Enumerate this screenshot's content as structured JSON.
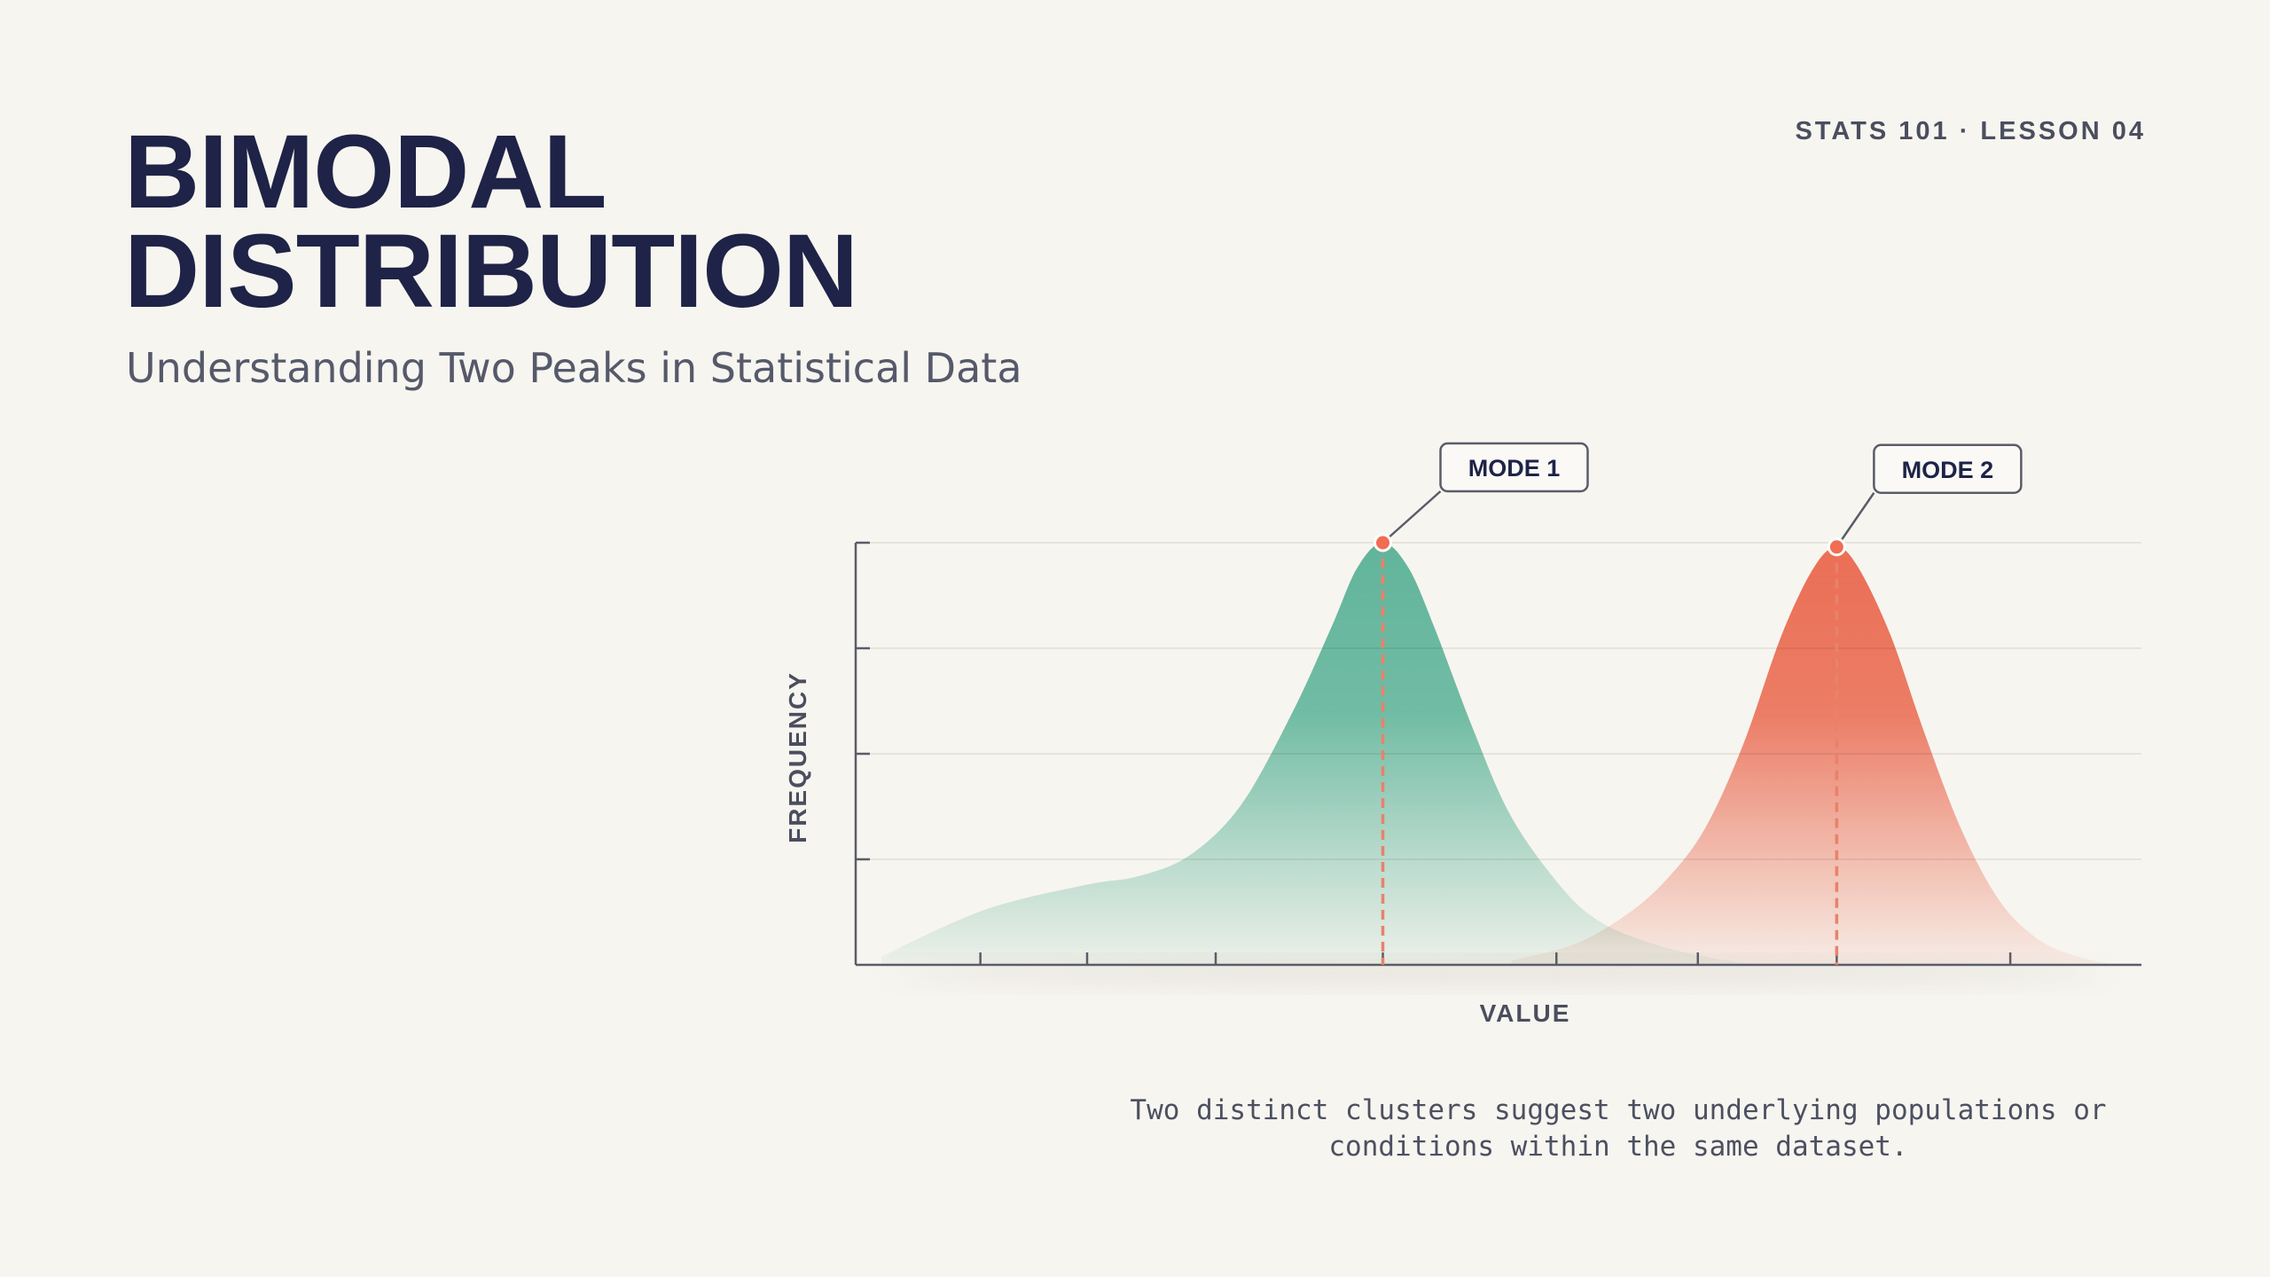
{
  "header": {
    "kicker": "STATS 101 · LESSON 04",
    "title_line1": "BIMODAL",
    "title_line2": "DISTRIBUTION",
    "subtitle": "Understanding Two Peaks in Statistical Data"
  },
  "caption": "Two distinct clusters suggest two underlying populations or conditions within the same dataset.",
  "colors": {
    "mode1": "#5cb9a0",
    "mode2": "#f26c52",
    "dash": "#e8826a",
    "axis": "#5a5d68",
    "grid": "#e7e4dd",
    "label_dark": "#1e2347"
  },
  "chart_data": {
    "type": "area",
    "xlabel": "VALUE",
    "ylabel": "FREQUENCY",
    "xlim": [
      0,
      100
    ],
    "ylim": [
      0,
      100
    ],
    "grid": true,
    "annotations": [
      {
        "label": "MODE 1",
        "x": 41,
        "y": 100
      },
      {
        "label": "MODE 2",
        "x": 76.3,
        "y": 99
      }
    ],
    "series": [
      {
        "x": [
          2,
          10,
          18,
          22,
          26,
          30,
          34,
          37,
          39,
          41,
          43,
          45,
          48,
          51,
          55,
          58,
          62,
          66,
          70
        ],
        "y": [
          2,
          13,
          19,
          21,
          26,
          38,
          60,
          80,
          94,
          100,
          94,
          80,
          56,
          35,
          18,
          10,
          5,
          2,
          0
        ]
      },
      {
        "x": [
          51,
          56,
          60,
          63,
          66,
          69,
          72,
          74.5,
          76.3,
          78,
          80.5,
          83,
          86,
          89,
          92,
          95,
          98
        ],
        "y": [
          1,
          5,
          12,
          20,
          32,
          52,
          78,
          94,
          99,
          94,
          78,
          56,
          32,
          15,
          6,
          2,
          0
        ]
      }
    ]
  }
}
